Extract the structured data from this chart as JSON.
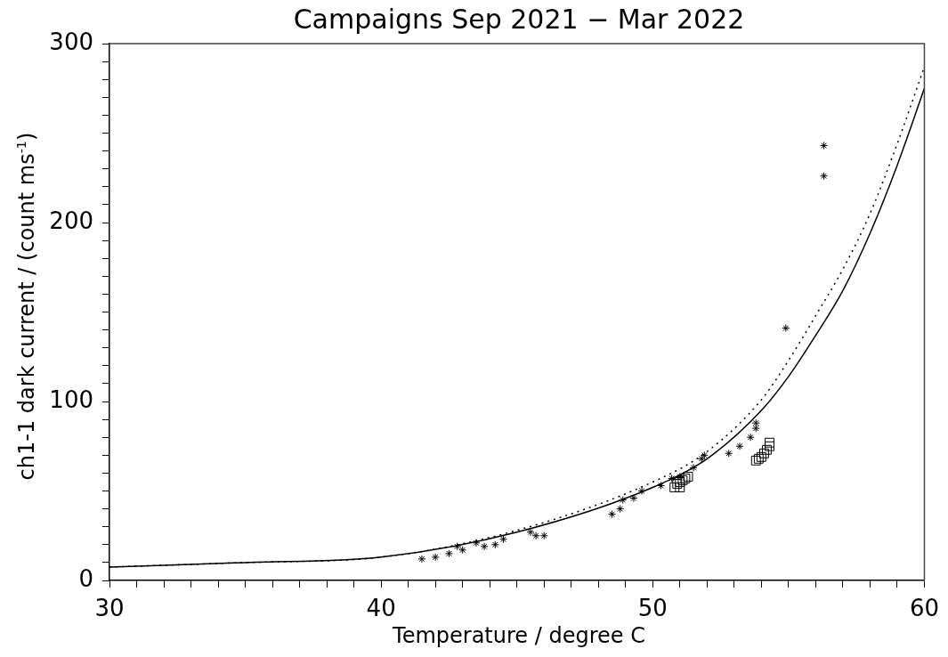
{
  "chart_data": {
    "type": "scatter",
    "title": "Campaigns Sep 2021 − Mar 2022",
    "xlabel": "Temperature / degree C",
    "ylabel": "ch1-1 dark current / (count ms$^{-1}$)",
    "xlim": [
      30,
      60
    ],
    "ylim": [
      0,
      300
    ],
    "xticks": [
      30,
      {
        "value": 31,
        "label": null
      },
      {
        "value": 32,
        "label": null
      },
      {
        "value": 33,
        "label": null
      },
      {
        "value": 34,
        "label": null
      },
      {
        "value": 35,
        "label": null
      },
      {
        "value": 36,
        "label": null
      },
      {
        "value": 37,
        "label": null
      },
      {
        "value": 38,
        "label": null
      },
      {
        "value": 39,
        "label": null
      },
      40,
      {
        "value": 41,
        "label": null
      },
      {
        "value": 42,
        "label": null
      },
      {
        "value": 43,
        "label": null
      },
      {
        "value": 44,
        "label": null
      },
      {
        "value": 45,
        "label": null
      },
      {
        "value": 46,
        "label": null
      },
      {
        "value": 47,
        "label": null
      },
      {
        "value": 48,
        "label": null
      },
      {
        "value": 49,
        "label": null
      },
      50,
      {
        "value": 51,
        "label": null
      },
      {
        "value": 52,
        "label": null
      },
      {
        "value": 53,
        "label": null
      },
      {
        "value": 54,
        "label": null
      },
      {
        "value": 55,
        "label": null
      },
      {
        "value": 56,
        "label": null
      },
      {
        "value": 57,
        "label": null
      },
      {
        "value": 58,
        "label": null
      },
      {
        "value": 59,
        "label": null
      },
      60
    ],
    "yticks": [
      0,
      {
        "value": 10,
        "label": null
      },
      {
        "value": 20,
        "label": null
      },
      {
        "value": 30,
        "label": null
      },
      {
        "value": 40,
        "label": null
      },
      {
        "value": 50,
        "label": null
      },
      {
        "value": 60,
        "label": null
      },
      {
        "value": 70,
        "label": null
      },
      {
        "value": 80,
        "label": null
      },
      {
        "value": 90,
        "label": null
      },
      100,
      {
        "value": 110,
        "label": null
      },
      {
        "value": 120,
        "label": null
      },
      {
        "value": 130,
        "label": null
      },
      {
        "value": 140,
        "label": null
      },
      {
        "value": 150,
        "label": null
      },
      {
        "value": 160,
        "label": null
      },
      {
        "value": 170,
        "label": null
      },
      {
        "value": 180,
        "label": null
      },
      {
        "value": 190,
        "label": null
      },
      200,
      {
        "value": 210,
        "label": null
      },
      {
        "value": 220,
        "label": null
      },
      {
        "value": 230,
        "label": null
      },
      {
        "value": 240,
        "label": null
      },
      {
        "value": 250,
        "label": null
      },
      {
        "value": 260,
        "label": null
      },
      {
        "value": 270,
        "label": null
      },
      {
        "value": 280,
        "label": null
      },
      {
        "value": 290,
        "label": null
      },
      300
    ],
    "grid": false,
    "legend": false,
    "series": [
      {
        "type": "line",
        "color": "#000000",
        "line_style": "solid",
        "marker": "none",
        "x": [
          30,
          35,
          40,
          45,
          50,
          52,
          54,
          55,
          56,
          57,
          58,
          59,
          60
        ],
        "values": [
          7.5,
          10,
          13,
          27,
          52,
          68,
          95,
          114,
          137,
          162,
          194,
          232,
          275
        ]
      },
      {
        "type": "line",
        "color": "#000000",
        "line_style": "dotted",
        "marker": "none",
        "x": [
          30,
          35,
          40,
          45,
          50,
          52,
          54,
          55,
          56,
          57,
          58,
          59,
          60
        ],
        "values": [
          7.5,
          10,
          13,
          28,
          55,
          72,
          101,
          123,
          148,
          174,
          205,
          244,
          287
        ]
      },
      {
        "type": "scatter",
        "color": "#000000",
        "marker": "cross",
        "x": [
          41.5,
          42,
          42.5,
          42.8,
          43,
          43.5,
          43.8,
          44.2,
          44.5,
          45.5,
          45.7,
          46,
          48.5,
          48.8,
          48.9,
          49.3,
          49.6,
          50.3,
          50.7,
          51,
          51.5,
          51.8,
          51.9,
          52.8,
          53.2,
          53.6,
          53.8,
          53.8,
          54.9,
          56.3,
          56.3
        ],
        "values": [
          12,
          13,
          15,
          19,
          17,
          21,
          19,
          20,
          23,
          27,
          25,
          25,
          37,
          40,
          45,
          46,
          50,
          53,
          57,
          58,
          63,
          68,
          70,
          71,
          75,
          80,
          85,
          88,
          141,
          226,
          243
        ]
      },
      {
        "type": "scatter",
        "color": "#000000",
        "marker": "square",
        "x": [
          50.8,
          50.9,
          51,
          51.1,
          51.2,
          51.3,
          51,
          53.8,
          53.9,
          54,
          54.1,
          54.2,
          54.3,
          54.3
        ],
        "values": [
          52,
          54,
          55,
          56,
          57,
          58,
          52,
          67,
          68,
          69,
          71,
          73,
          75,
          77
        ]
      }
    ]
  }
}
